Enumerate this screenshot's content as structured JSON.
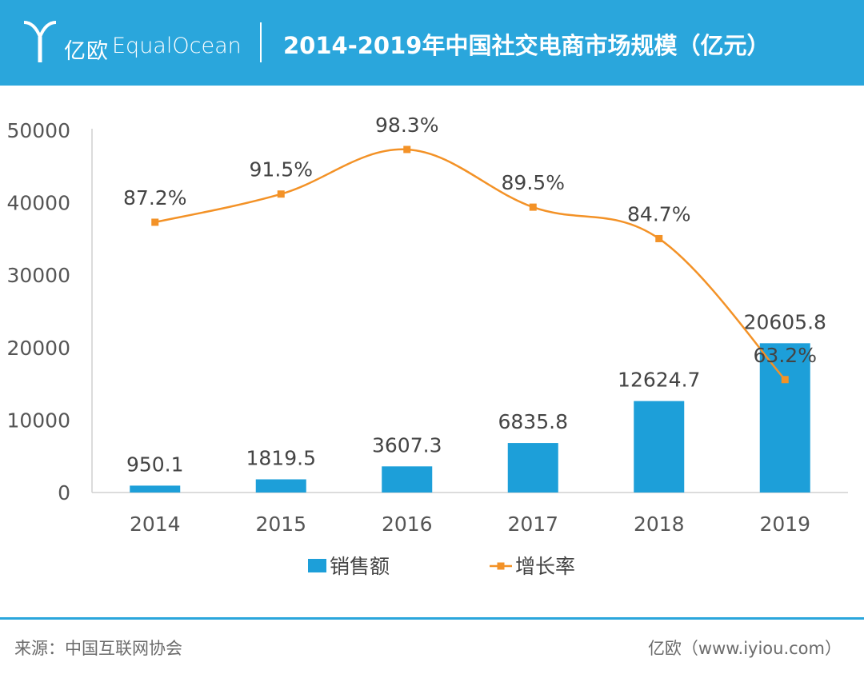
{
  "header": {
    "logo_cn": "亿欧",
    "logo_en": "EqualOcean",
    "title": "2014-2019年中国社交电商市场规模（亿元）"
  },
  "chart_data": {
    "type": "bar",
    "title": "2014-2019年中国社交电商市场规模（亿元）",
    "categories": [
      "2014",
      "2015",
      "2016",
      "2017",
      "2018",
      "2019"
    ],
    "y_ticks": [
      "50000",
      "40000",
      "30000",
      "20000",
      "10000",
      "0"
    ],
    "ylim": [
      0,
      50000
    ],
    "series": [
      {
        "name": "销售额",
        "type": "bar",
        "values": [
          950.1,
          1819.5,
          3607.3,
          6835.8,
          12624.7,
          20605.8
        ],
        "labels": [
          "950.1",
          "1819.5",
          "3607.3",
          "6835.8",
          "12624.7",
          "20605.8"
        ],
        "color": "#1d9fd9"
      },
      {
        "name": "增长率",
        "type": "line",
        "values": [
          87.2,
          91.5,
          98.3,
          89.5,
          84.7,
          63.2
        ],
        "labels": [
          "87.2%",
          "91.5%",
          "98.3%",
          "89.5%",
          "84.7%",
          "63.2%"
        ],
        "color": "#f39227"
      }
    ],
    "legend_position": "bottom",
    "grid": false
  },
  "footer": {
    "source": "来源：中国互联网协会",
    "credit": "亿欧（www.iyiou.com）"
  },
  "colors": {
    "header_bg": "#2aa6dc",
    "bar": "#1d9fd9",
    "line": "#f39227"
  }
}
